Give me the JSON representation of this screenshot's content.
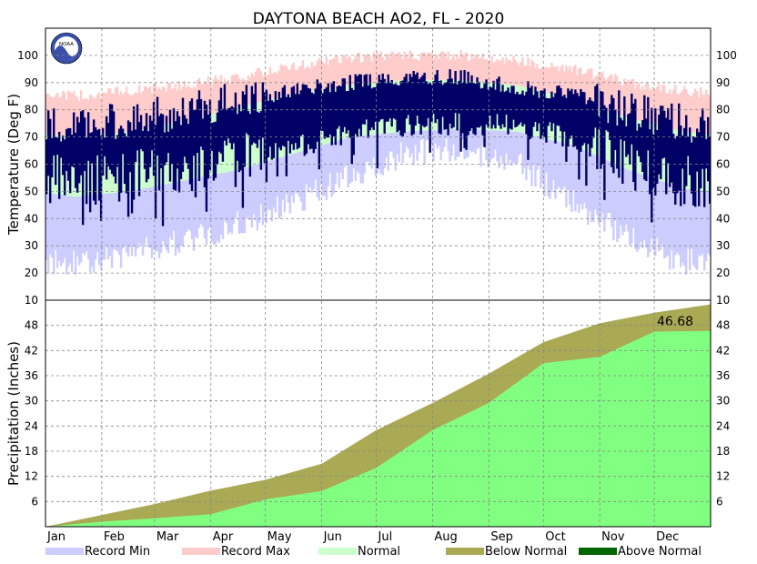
{
  "title": "DAYTONA BEACH AO2, FL - 2020",
  "colors": {
    "record_min": "#ccccff",
    "record_max": "#ffcccc",
    "normal": "#ccffcc",
    "observed": "#000066",
    "below_normal": "#aaaa55",
    "above_normal": "#006600",
    "precip_actual": "#80ff80"
  },
  "logo": {
    "name": "noaa-logo",
    "text": "NOAA"
  },
  "chart_data": [
    {
      "type": "bar",
      "name": "temperature",
      "ylabel": "Temperature (Deg F)",
      "ylim": [
        10,
        110
      ],
      "yticks": [
        10,
        20,
        30,
        40,
        50,
        60,
        70,
        80,
        90,
        100
      ],
      "grid": true,
      "x_categories": [
        "Jan",
        "Feb",
        "Mar",
        "Apr",
        "May",
        "Jun",
        "Jul",
        "Aug",
        "Sep",
        "Oct",
        "Nov",
        "Dec"
      ],
      "monthly_profile": {
        "record_max": [
          85,
          87,
          89,
          92,
          96,
          99,
          100,
          100,
          98,
          95,
          90,
          87
        ],
        "normal_high": [
          70,
          72,
          76,
          81,
          86,
          89,
          91,
          91,
          89,
          84,
          77,
          72
        ],
        "normal_low": [
          48,
          50,
          54,
          58,
          64,
          70,
          72,
          73,
          72,
          67,
          58,
          51
        ],
        "record_min": [
          24,
          27,
          32,
          38,
          46,
          56,
          64,
          66,
          60,
          46,
          33,
          24
        ],
        "observed_high": [
          74,
          76,
          80,
          84,
          87,
          90,
          92,
          92,
          88,
          86,
          80,
          75
        ],
        "observed_low": [
          54,
          56,
          58,
          62,
          66,
          72,
          74,
          75,
          74,
          70,
          60,
          54
        ]
      }
    },
    {
      "type": "area",
      "name": "precipitation",
      "ylabel": "Precipitation (Inches)",
      "ylim": [
        0,
        54
      ],
      "yticks": [
        6,
        12,
        18,
        24,
        30,
        36,
        42,
        48
      ],
      "grid": true,
      "x_categories": [
        "Jan",
        "Feb",
        "Mar",
        "Apr",
        "May",
        "Jun",
        "Jul",
        "Aug",
        "Sep",
        "Oct",
        "Nov",
        "Dec"
      ],
      "annotation": "46.68",
      "cumulative_normal": [
        0,
        2.8,
        5.4,
        8.6,
        11.2,
        15.0,
        23.0,
        29.5,
        36.5,
        44.0,
        48.5,
        51.0,
        53.0
      ],
      "cumulative_actual": [
        0,
        1.2,
        2.0,
        3.0,
        6.5,
        8.5,
        14.0,
        23.0,
        29.5,
        39.0,
        40.5,
        46.5,
        46.68
      ]
    }
  ],
  "x_labels": [
    "Jan",
    "Feb",
    "Mar",
    "Apr",
    "May",
    "Jun",
    "Jul",
    "Aug",
    "Sep",
    "Oct",
    "Nov",
    "Dec"
  ],
  "legend": [
    {
      "label": "Record Min",
      "color": "#ccccff"
    },
    {
      "label": "Record Max",
      "color": "#ffcccc"
    },
    {
      "label": "Normal",
      "color": "#ccffcc"
    },
    {
      "label": "Below Normal",
      "color": "#aaaa55"
    },
    {
      "label": "Above Normal",
      "color": "#006600"
    }
  ]
}
